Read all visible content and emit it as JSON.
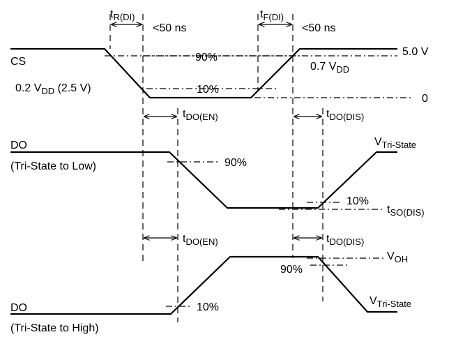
{
  "labels": {
    "cs": "CS",
    "do_label": "DO",
    "do_low_caption": "(Tri-State to Low)",
    "do_high_caption": "(Tri-State to High)",
    "five_volt": "5.0 V",
    "zero": "0",
    "pct_90": "90%",
    "pct_10": "10%",
    "lt_50ns": "<50 ns",
    "t": "t",
    "v": "V",
    "tr_sub": "R(DI)",
    "tf_sub": "F(DI)",
    "doen_sub": "DO(EN)",
    "dodis_sub": "DO(DIS)",
    "sodis_sub": "SO(DIS)",
    "vdd_sub": "DD",
    "tristate_sub": "Tri-State",
    "oh_sub": "OH",
    "v07_prefix": "0.7 V",
    "v02_prefix": "0.2 V",
    "v02_suffix": " (2.5 V)"
  }
}
